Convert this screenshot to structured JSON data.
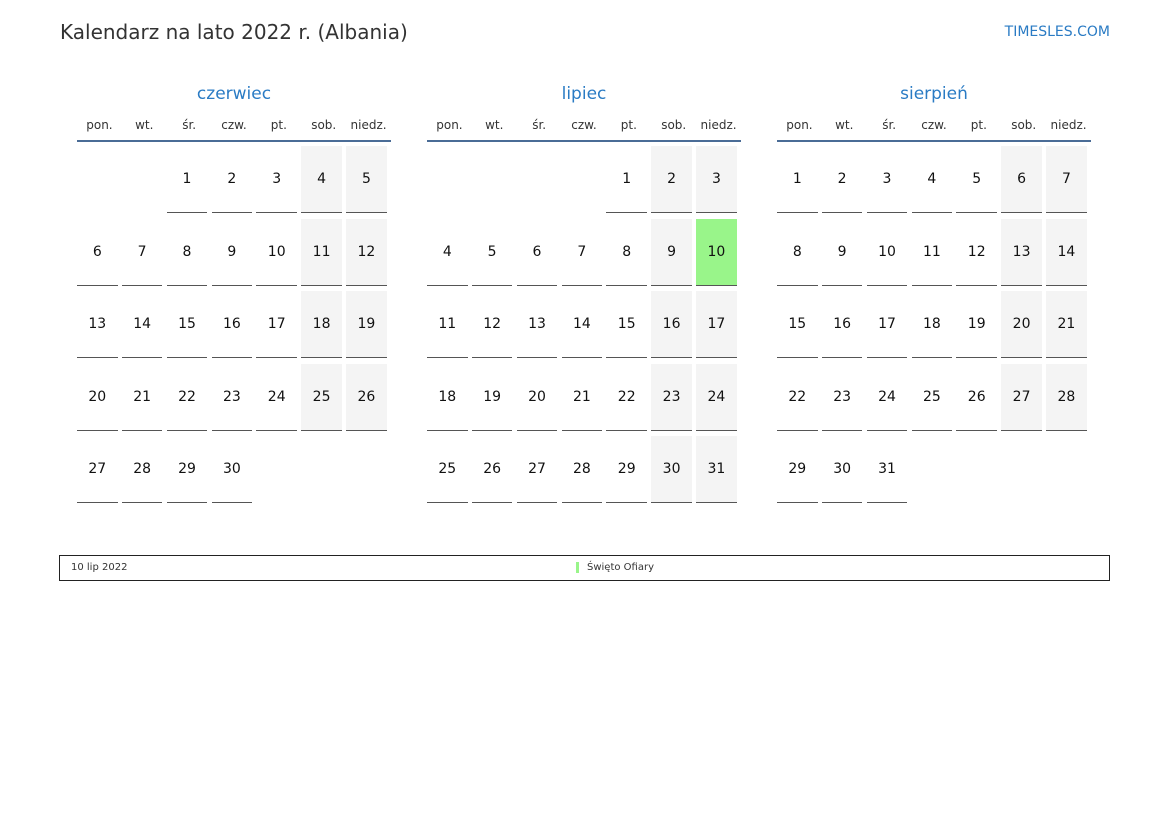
{
  "title": "Kalendarz na lato 2022 r. (Albania)",
  "brand": "TIMESLES.COM",
  "weekdays": [
    "pon.",
    "wt.",
    "śr.",
    "czw.",
    "pt.",
    "sob.",
    "niedz."
  ],
  "colors": {
    "accent": "#2a7bc4",
    "weekend": "#f4f4f4",
    "holiday": "#99f58a"
  },
  "months": [
    {
      "name": "czerwiec",
      "weeks": [
        [
          null,
          null,
          1,
          2,
          3,
          4,
          5
        ],
        [
          6,
          7,
          8,
          9,
          10,
          11,
          12
        ],
        [
          13,
          14,
          15,
          16,
          17,
          18,
          19
        ],
        [
          20,
          21,
          22,
          23,
          24,
          25,
          26
        ],
        [
          27,
          28,
          29,
          30,
          null,
          null,
          null
        ]
      ],
      "holidays": []
    },
    {
      "name": "lipiec",
      "weeks": [
        [
          null,
          null,
          null,
          null,
          1,
          2,
          3
        ],
        [
          4,
          5,
          6,
          7,
          8,
          9,
          10
        ],
        [
          11,
          12,
          13,
          14,
          15,
          16,
          17
        ],
        [
          18,
          19,
          20,
          21,
          22,
          23,
          24
        ],
        [
          25,
          26,
          27,
          28,
          29,
          30,
          31
        ]
      ],
      "holidays": [
        10
      ]
    },
    {
      "name": "sierpień",
      "weeks": [
        [
          1,
          2,
          3,
          4,
          5,
          6,
          7
        ],
        [
          8,
          9,
          10,
          11,
          12,
          13,
          14
        ],
        [
          15,
          16,
          17,
          18,
          19,
          20,
          21
        ],
        [
          22,
          23,
          24,
          25,
          26,
          27,
          28
        ],
        [
          29,
          30,
          31,
          null,
          null,
          null,
          null
        ]
      ],
      "holidays": []
    }
  ],
  "legend": {
    "date": "10 lip 2022",
    "name": "Święto Ofiary"
  }
}
